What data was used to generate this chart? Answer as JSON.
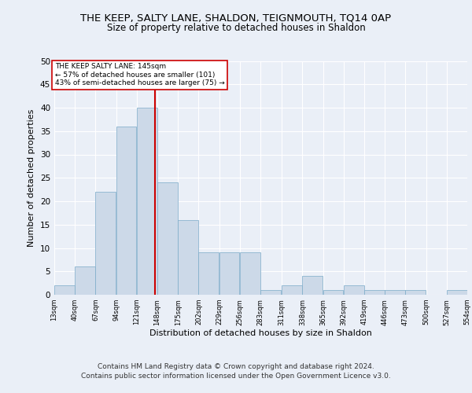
{
  "title": "THE KEEP, SALTY LANE, SHALDON, TEIGNMOUTH, TQ14 0AP",
  "subtitle": "Size of property relative to detached houses in Shaldon",
  "xlabel": "Distribution of detached houses by size in Shaldon",
  "ylabel": "Number of detached properties",
  "bin_edges": [
    13,
    40,
    67,
    94,
    121,
    148,
    175,
    202,
    229,
    256,
    283,
    311,
    338,
    365,
    392,
    419,
    446,
    473,
    500,
    527,
    554
  ],
  "bar_heights": [
    2,
    6,
    22,
    36,
    40,
    24,
    16,
    9,
    9,
    9,
    1,
    2,
    4,
    1,
    2,
    1,
    1,
    1,
    0,
    1
  ],
  "bar_color": "#ccd9e8",
  "bar_edgecolor": "#7aaac8",
  "property_size": 145,
  "vline_color": "#cc0000",
  "annotation_text": "THE KEEP SALTY LANE: 145sqm\n← 57% of detached houses are smaller (101)\n43% of semi-detached houses are larger (75) →",
  "annotation_box_edgecolor": "#cc0000",
  "annotation_box_facecolor": "#ffffff",
  "ylim": [
    0,
    50
  ],
  "yticks": [
    0,
    5,
    10,
    15,
    20,
    25,
    30,
    35,
    40,
    45,
    50
  ],
  "tick_labels": [
    "13sqm",
    "40sqm",
    "67sqm",
    "94sqm",
    "121sqm",
    "148sqm",
    "175sqm",
    "202sqm",
    "229sqm",
    "256sqm",
    "283sqm",
    "311sqm",
    "338sqm",
    "365sqm",
    "392sqm",
    "419sqm",
    "446sqm",
    "473sqm",
    "500sqm",
    "527sqm",
    "554sqm"
  ],
  "footer": "Contains HM Land Registry data © Crown copyright and database right 2024.\nContains public sector information licensed under the Open Government Licence v3.0.",
  "bg_color": "#eaeff7",
  "plot_bg_color": "#eaeff7",
  "grid_color": "#ffffff",
  "title_fontsize": 9.5,
  "subtitle_fontsize": 8.5,
  "footer_fontsize": 6.5
}
